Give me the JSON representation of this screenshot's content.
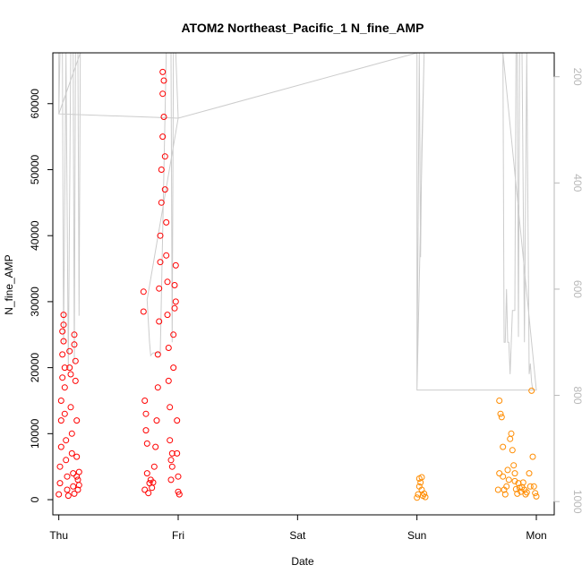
{
  "chart_data": {
    "type": "scatter",
    "title": "ATOM2 Northeast_Pacific_1 N_fine_AMP",
    "xlabel": "Date",
    "ylabel": "N_fine_AMP",
    "x_ticks": [
      "Thu",
      "Fri",
      "Sat",
      "Sun",
      "Mon"
    ],
    "x_range_days": [
      -0.05,
      4.15
    ],
    "y_ticks": [
      0,
      10000,
      20000,
      30000,
      40000,
      50000,
      60000
    ],
    "ylim": [
      -2300,
      67700
    ],
    "y2_ticks": [
      200,
      400,
      600,
      800,
      1000
    ],
    "y2lim": [
      1025,
      155
    ],
    "y2_reversed": true,
    "grid": false,
    "legend": "none",
    "colors": {
      "high": "#ff0000",
      "low": "#ff8c00",
      "line": "#cccccc"
    },
    "series": [
      {
        "color": "#ff0000",
        "points": [
          [
            0.0,
            800
          ],
          [
            0.01,
            2500
          ],
          [
            0.01,
            5000
          ],
          [
            0.02,
            8000
          ],
          [
            0.02,
            12000
          ],
          [
            0.02,
            15000
          ],
          [
            0.03,
            18500
          ],
          [
            0.03,
            22000
          ],
          [
            0.03,
            25500
          ],
          [
            0.04,
            28000
          ],
          [
            0.04,
            26500
          ],
          [
            0.04,
            24000
          ],
          [
            0.05,
            20000
          ],
          [
            0.05,
            17000
          ],
          [
            0.05,
            13000
          ],
          [
            0.06,
            9000
          ],
          [
            0.06,
            6000
          ],
          [
            0.07,
            3500
          ],
          [
            0.07,
            1500
          ],
          [
            0.08,
            600
          ],
          [
            0.09,
            20000
          ],
          [
            0.09,
            22500
          ],
          [
            0.1,
            19000
          ],
          [
            0.1,
            14000
          ],
          [
            0.11,
            10000
          ],
          [
            0.11,
            7000
          ],
          [
            0.12,
            4000
          ],
          [
            0.12,
            2000
          ],
          [
            0.13,
            900
          ],
          [
            0.13,
            23500
          ],
          [
            0.13,
            25000
          ],
          [
            0.14,
            21000
          ],
          [
            0.14,
            18000
          ],
          [
            0.15,
            12000
          ],
          [
            0.15,
            6500
          ],
          [
            0.15,
            3500
          ],
          [
            0.16,
            1500
          ],
          [
            0.16,
            3000
          ],
          [
            0.17,
            4200
          ],
          [
            0.17,
            2200
          ],
          [
            0.71,
            31500
          ],
          [
            0.71,
            28500
          ],
          [
            0.72,
            1500
          ],
          [
            0.72,
            15000
          ],
          [
            0.73,
            13000
          ],
          [
            0.73,
            10500
          ],
          [
            0.74,
            8500
          ],
          [
            0.74,
            4000
          ],
          [
            0.75,
            1000
          ],
          [
            0.76,
            2500
          ],
          [
            0.77,
            3000
          ],
          [
            0.78,
            1800
          ],
          [
            0.79,
            2600
          ],
          [
            0.8,
            5000
          ],
          [
            0.81,
            8000
          ],
          [
            0.82,
            12000
          ],
          [
            0.83,
            17000
          ],
          [
            0.83,
            22000
          ],
          [
            0.84,
            27000
          ],
          [
            0.84,
            32000
          ],
          [
            0.85,
            36000
          ],
          [
            0.85,
            40000
          ],
          [
            0.86,
            45000
          ],
          [
            0.86,
            50000
          ],
          [
            0.87,
            55000
          ],
          [
            0.87,
            61500
          ],
          [
            0.87,
            64800
          ],
          [
            0.88,
            63500
          ],
          [
            0.88,
            58000
          ],
          [
            0.89,
            52000
          ],
          [
            0.89,
            47000
          ],
          [
            0.9,
            42000
          ],
          [
            0.9,
            37000
          ],
          [
            0.91,
            33000
          ],
          [
            0.91,
            28000
          ],
          [
            0.92,
            23000
          ],
          [
            0.92,
            18000
          ],
          [
            0.93,
            14000
          ],
          [
            0.93,
            9000
          ],
          [
            0.94,
            6000
          ],
          [
            0.94,
            3000
          ],
          [
            0.95,
            5000
          ],
          [
            0.95,
            7000
          ],
          [
            0.96,
            20000
          ],
          [
            0.96,
            25000
          ],
          [
            0.97,
            29000
          ],
          [
            0.97,
            32500
          ],
          [
            0.98,
            35500
          ],
          [
            0.98,
            30000
          ],
          [
            0.99,
            12000
          ],
          [
            0.99,
            7000
          ],
          [
            1.0,
            3500
          ],
          [
            1.0,
            1200
          ],
          [
            1.01,
            800
          ]
        ]
      },
      {
        "color": "#ff8c00",
        "points": [
          [
            3.0,
            300
          ],
          [
            3.01,
            800
          ],
          [
            3.02,
            2000
          ],
          [
            3.02,
            3200
          ],
          [
            3.03,
            2600
          ],
          [
            3.04,
            3400
          ],
          [
            3.04,
            1500
          ],
          [
            3.05,
            600
          ],
          [
            3.06,
            900
          ],
          [
            3.07,
            400
          ],
          [
            3.68,
            1500
          ],
          [
            3.69,
            4000
          ],
          [
            3.69,
            15000
          ],
          [
            3.7,
            13000
          ],
          [
            3.71,
            12500
          ],
          [
            3.72,
            8000
          ],
          [
            3.72,
            3500
          ],
          [
            3.73,
            1500
          ],
          [
            3.74,
            800
          ],
          [
            3.75,
            2000
          ],
          [
            3.76,
            4500
          ],
          [
            3.77,
            3000
          ],
          [
            3.78,
            9200
          ],
          [
            3.79,
            10000
          ],
          [
            3.8,
            7500
          ],
          [
            3.81,
            5200
          ],
          [
            3.82,
            4000
          ],
          [
            3.82,
            2800
          ],
          [
            3.83,
            1600
          ],
          [
            3.84,
            900
          ],
          [
            3.85,
            2500
          ],
          [
            3.86,
            1800
          ],
          [
            3.87,
            1200
          ],
          [
            3.88,
            1900
          ],
          [
            3.89,
            2600
          ],
          [
            3.9,
            1500
          ],
          [
            3.91,
            800
          ],
          [
            3.92,
            1100
          ],
          [
            3.94,
            4000
          ],
          [
            3.95,
            2000
          ],
          [
            3.96,
            16500
          ],
          [
            3.97,
            6500
          ],
          [
            3.98,
            2000
          ],
          [
            3.99,
            1000
          ],
          [
            4.0,
            500
          ]
        ]
      }
    ],
    "line_series": {
      "color": "#cccccc",
      "axis": "right",
      "points": [
        [
          0.0,
          155
        ],
        [
          0.0,
          270
        ],
        [
          0.01,
          155
        ],
        [
          0.03,
          155
        ],
        [
          0.04,
          700
        ],
        [
          0.06,
          155
        ],
        [
          0.08,
          750
        ],
        [
          0.1,
          155
        ],
        [
          0.12,
          155
        ],
        [
          0.13,
          740
        ],
        [
          0.14,
          155
        ],
        [
          0.16,
          155
        ],
        [
          0.17,
          650
        ],
        [
          0.18,
          155
        ],
        [
          0.0,
          270
        ],
        [
          1.0,
          278
        ],
        [
          0.74,
          620
        ],
        [
          0.76,
          700
        ],
        [
          0.77,
          725
        ],
        [
          0.79,
          720
        ],
        [
          0.85,
          720
        ],
        [
          0.9,
          155
        ],
        [
          0.94,
          155
        ],
        [
          0.95,
          700
        ],
        [
          0.96,
          155
        ],
        [
          0.98,
          155
        ],
        [
          1.0,
          278
        ],
        [
          3.0,
          155
        ],
        [
          3.0,
          790
        ],
        [
          3.02,
          155
        ],
        [
          3.03,
          540
        ],
        [
          3.04,
          340
        ],
        [
          3.06,
          155
        ],
        [
          3.0,
          790
        ],
        [
          4.0,
          790
        ],
        [
          3.72,
          155
        ],
        [
          3.73,
          700
        ],
        [
          3.74,
          700
        ],
        [
          3.75,
          600
        ],
        [
          3.76,
          700
        ],
        [
          3.77,
          700
        ],
        [
          3.78,
          760
        ],
        [
          3.8,
          640
        ],
        [
          3.82,
          640
        ],
        [
          3.83,
          155
        ],
        [
          3.84,
          155
        ],
        [
          3.85,
          690
        ],
        [
          3.86,
          155
        ],
        [
          3.88,
          155
        ],
        [
          3.9,
          700
        ],
        [
          3.92,
          155
        ],
        [
          3.94,
          760
        ],
        [
          3.95,
          740
        ],
        [
          3.96,
          775
        ],
        [
          3.97,
          790
        ],
        [
          4.0,
          790
        ]
      ]
    }
  }
}
